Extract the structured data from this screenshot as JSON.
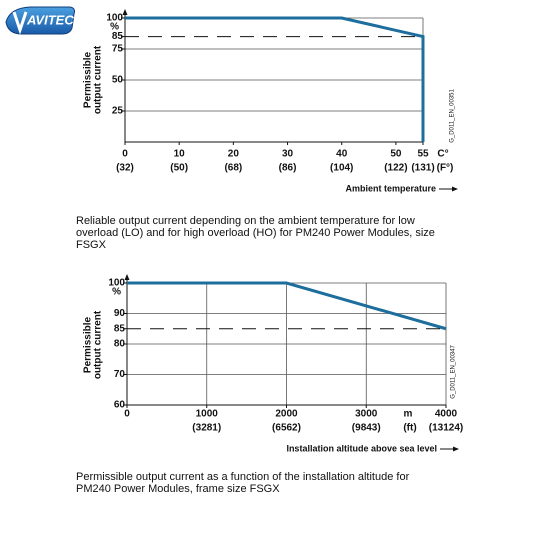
{
  "logo": "AVITEC",
  "chart_data": [
    {
      "type": "line",
      "ylabel": [
        "Permissible",
        "output current"
      ],
      "y_unit": "%",
      "xlabel": "Ambient temperature",
      "x_units": [
        "C°",
        "(F°)"
      ],
      "code": "G_D011_EN_00351",
      "caption": [
        "Reliable output current depending on the ambient temperature for low",
        "overload (LO) and for high overload (HO) for PM240 Power Modules, size",
        "FSGX"
      ],
      "xlim": [
        0,
        55
      ],
      "ylim": [
        0,
        100
      ],
      "xticks": [
        0,
        10,
        20,
        30,
        40,
        50,
        55
      ],
      "xtick_sublabels": [
        "(32)",
        "(50)",
        "(68)",
        "(86)",
        "(104)",
        "(122)",
        "(131)"
      ],
      "yticks": [
        25,
        50,
        75,
        85,
        100
      ],
      "ygrid": [
        25,
        50,
        75,
        100
      ],
      "xgrid": [],
      "series": [
        {
          "color": "#1d6e9c",
          "style": "solid",
          "x": [
            0,
            40,
            55,
            55
          ],
          "values": [
            100,
            100,
            85,
            0
          ]
        },
        {
          "color": "#111111",
          "style": "dashed",
          "x": [
            0,
            55
          ],
          "values": [
            85,
            85
          ]
        }
      ]
    },
    {
      "type": "line",
      "ylabel": [
        "Permissible",
        "output current"
      ],
      "y_unit": "%",
      "xlabel": "Installation altitude above sea level",
      "x_units": [
        "m",
        "(ft)"
      ],
      "code": "G_D011_EN_00347",
      "caption": [
        "Permissible output current as a function of the installation altitude for",
        "PM240 Power Modules, frame size FSGX"
      ],
      "xlim": [
        0,
        4000
      ],
      "ylim": [
        60,
        100
      ],
      "xticks": [
        0,
        1000,
        2000,
        3000,
        4000
      ],
      "xtick_sublabels": [
        null,
        "(3281)",
        "(6562)",
        "(9843)",
        "(13124)"
      ],
      "yticks": [
        60,
        70,
        80,
        85,
        90,
        100
      ],
      "ygrid": [
        70,
        80,
        90,
        100
      ],
      "xgrid": [
        1000,
        2000,
        3000
      ],
      "series": [
        {
          "color": "#1d6e9c",
          "style": "solid",
          "x": [
            0,
            2000,
            4000
          ],
          "values": [
            100,
            100,
            85
          ]
        },
        {
          "color": "#111111",
          "style": "dashed",
          "x": [
            0,
            4000
          ],
          "values": [
            85,
            85
          ]
        }
      ]
    }
  ]
}
